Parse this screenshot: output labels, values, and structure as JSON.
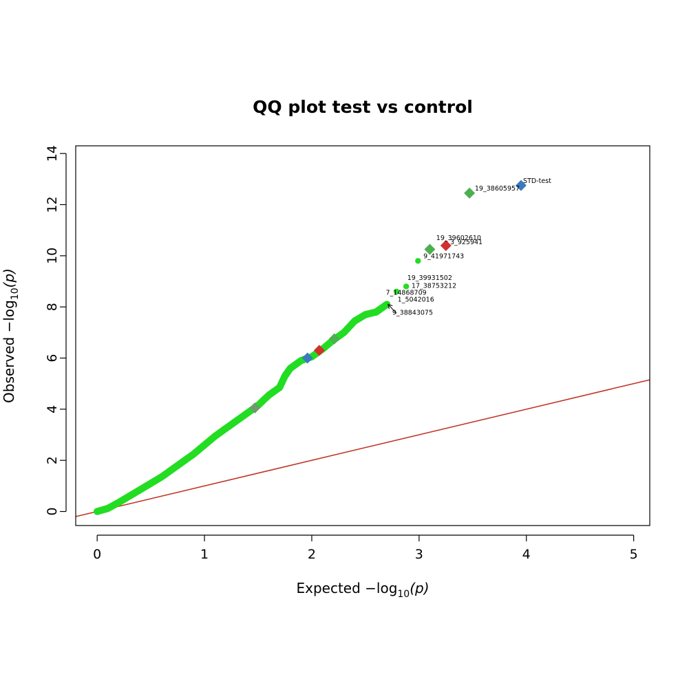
{
  "chart_data": {
    "type": "scatter",
    "title": "QQ plot test vs control",
    "xlabel": {
      "main": "Expected  −log",
      "sub": "10",
      "tail": "(p)"
    },
    "ylabel": {
      "main": "Observed  −log",
      "sub": "10",
      "tail": "(p)"
    },
    "xlim": [
      -0.2,
      5.15
    ],
    "ylim": [
      -0.55,
      14.3
    ],
    "xticks": [
      0,
      1,
      2,
      3,
      4,
      5
    ],
    "yticks": [
      0,
      2,
      4,
      6,
      8,
      10,
      12,
      14
    ],
    "grid": false,
    "colors": {
      "points": "#22dd22",
      "reference_line": "#c0392b",
      "highlight_green": "#4caf50",
      "highlight_red": "#d32f2f",
      "highlight_blue": "#3a7bbf",
      "highlight_grey": "#6e9a6e"
    },
    "reference_line": {
      "slope": 1,
      "intercept": 0
    },
    "curve": [
      [
        0,
        0
      ],
      [
        0.1,
        0.12
      ],
      [
        0.2,
        0.35
      ],
      [
        0.3,
        0.6
      ],
      [
        0.4,
        0.85
      ],
      [
        0.5,
        1.1
      ],
      [
        0.6,
        1.35
      ],
      [
        0.7,
        1.65
      ],
      [
        0.8,
        1.95
      ],
      [
        0.9,
        2.25
      ],
      [
        1.0,
        2.6
      ],
      [
        1.1,
        2.95
      ],
      [
        1.2,
        3.25
      ],
      [
        1.3,
        3.55
      ],
      [
        1.4,
        3.85
      ],
      [
        1.5,
        4.15
      ],
      [
        1.6,
        4.55
      ],
      [
        1.7,
        4.85
      ],
      [
        1.75,
        5.3
      ],
      [
        1.8,
        5.6
      ],
      [
        1.9,
        5.9
      ],
      [
        2.0,
        6.05
      ],
      [
        2.1,
        6.35
      ],
      [
        2.2,
        6.7
      ],
      [
        2.3,
        7.0
      ],
      [
        2.4,
        7.45
      ],
      [
        2.5,
        7.7
      ],
      [
        2.6,
        7.8
      ],
      [
        2.65,
        7.95
      ],
      [
        2.7,
        8.1
      ]
    ],
    "points": [
      {
        "x": 2.79,
        "y": 8.6
      },
      {
        "x": 2.88,
        "y": 8.8
      },
      {
        "x": 2.99,
        "y": 9.8
      }
    ],
    "highlights": [
      {
        "x": 1.47,
        "y": 4.05,
        "color": "highlight_grey"
      },
      {
        "x": 1.96,
        "y": 6.0,
        "color": "highlight_blue"
      },
      {
        "x": 2.07,
        "y": 6.3,
        "color": "highlight_red"
      },
      {
        "x": 2.21,
        "y": 6.75,
        "color": "highlight_green"
      },
      {
        "x": 3.1,
        "y": 10.25,
        "color": "highlight_green"
      },
      {
        "x": 3.25,
        "y": 10.4,
        "color": "highlight_red"
      },
      {
        "x": 3.47,
        "y": 12.45,
        "color": "highlight_green"
      },
      {
        "x": 3.95,
        "y": 12.75,
        "color": "highlight_blue"
      }
    ],
    "annotations": [
      {
        "text": "STD-test",
        "x": 3.97,
        "y": 12.85
      },
      {
        "text": "19_38605957",
        "x": 3.52,
        "y": 12.55
      },
      {
        "text": "19_39602610",
        "x": 3.16,
        "y": 10.62
      },
      {
        "text": "3_925941",
        "x": 3.29,
        "y": 10.45
      },
      {
        "text": "9_41971743",
        "x": 3.04,
        "y": 9.9
      },
      {
        "text": "19_39931502",
        "x": 2.89,
        "y": 9.05
      },
      {
        "text": "17_38753212",
        "x": 2.93,
        "y": 8.75
      },
      {
        "text": "7_14868709",
        "x": 2.69,
        "y": 8.48
      },
      {
        "text": "1_5042016",
        "x": 2.8,
        "y": 8.2
      },
      {
        "text": "9_38843075",
        "x": 2.75,
        "y": 7.7
      }
    ],
    "arrow": {
      "from": [
        2.79,
        7.75
      ],
      "to": [
        2.71,
        8.1
      ]
    }
  }
}
